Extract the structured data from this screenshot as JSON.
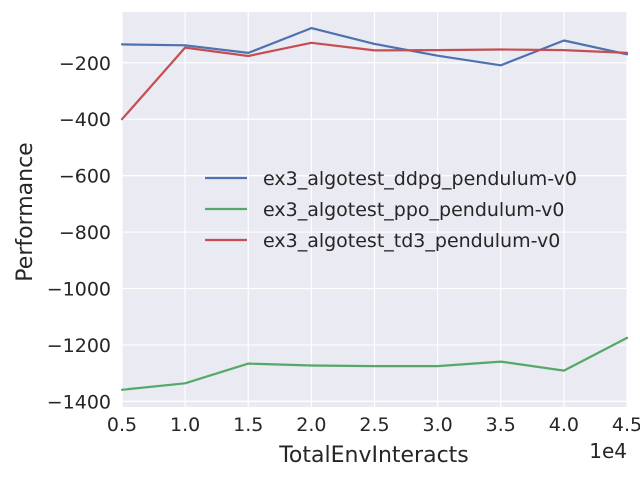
{
  "chart_data": {
    "type": "line",
    "title": "",
    "xlabel": "TotalEnvInteracts",
    "ylabel": "Performance",
    "x_offset_label": "1e4",
    "x_scale": 10000,
    "xlim": [
      5000,
      45000
    ],
    "ylim": [
      -1420,
      -20
    ],
    "x_ticks": [
      5000,
      10000,
      15000,
      20000,
      25000,
      30000,
      35000,
      40000,
      45000
    ],
    "x_tick_labels": [
      "0.5",
      "1.0",
      "1.5",
      "2.0",
      "2.5",
      "3.0",
      "3.5",
      "4.0",
      "4.5"
    ],
    "y_ticks": [
      -1400,
      -1200,
      -1000,
      -800,
      -600,
      -400,
      -200
    ],
    "y_tick_labels": [
      "−1400",
      "−1200",
      "−1000",
      "−800",
      "−600",
      "−400",
      "−200"
    ],
    "grid": true,
    "legend_position": "center-right",
    "x": [
      5000,
      10000,
      15000,
      20000,
      25000,
      30000,
      35000,
      40000,
      45000
    ],
    "series": [
      {
        "name": "ex3_algotest_ddpg_pendulum-v0",
        "color": "#4c72b0",
        "values": [
          -135,
          -138,
          -165,
          -77,
          -133,
          -175,
          -209,
          -121,
          -170
        ]
      },
      {
        "name": "ex3_algotest_ppo_pendulum-v0",
        "color": "#55a868",
        "values": [
          -1359,
          -1336,
          -1266,
          -1273,
          -1275,
          -1275,
          -1259,
          -1291,
          -1175
        ]
      },
      {
        "name": "ex3_algotest_td3_pendulum-v0",
        "color": "#c44e52",
        "values": [
          -400,
          -146,
          -176,
          -129,
          -156,
          -155,
          -153,
          -155,
          -165
        ]
      }
    ]
  },
  "style": {
    "plot_background": "#eaeaf2",
    "grid_color": "#ffffff",
    "text_color": "#262626"
  }
}
